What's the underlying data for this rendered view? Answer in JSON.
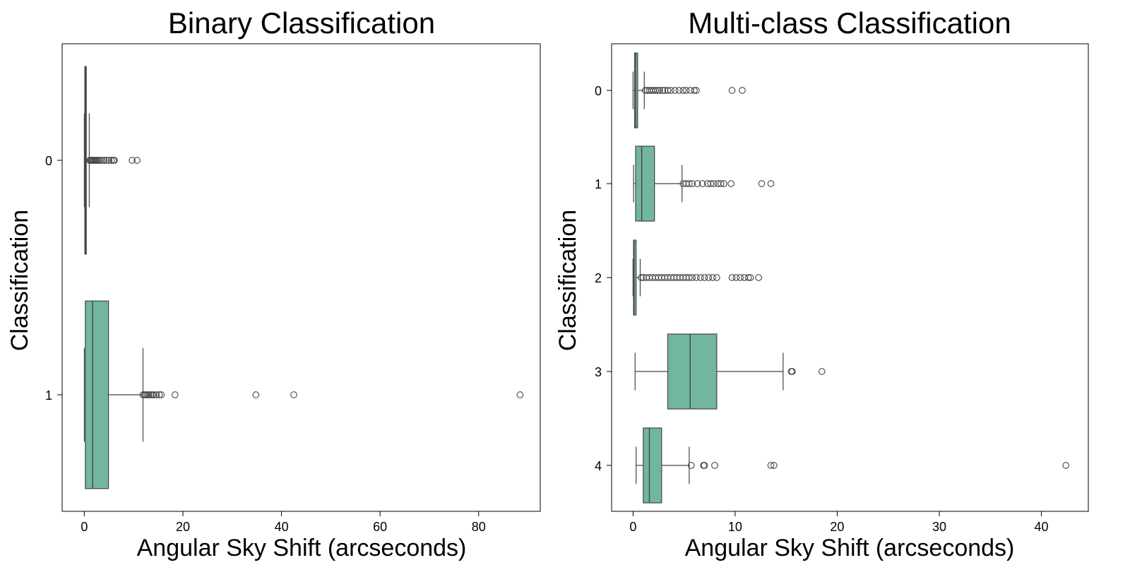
{
  "figure": {
    "background": "#ffffff"
  },
  "chart_data": [
    {
      "type": "boxplot",
      "orientation": "horizontal",
      "title": "Binary Classification",
      "xlabel": "Angular Sky Shift (arcseconds)",
      "ylabel": "Classification",
      "xlim": [
        -4.5,
        92.5
      ],
      "xticks": [
        0,
        20,
        40,
        60,
        80
      ],
      "categories": [
        "0",
        "1"
      ],
      "box_color": "#72b6a1",
      "edge_color": "#444444",
      "grid": false,
      "legend": "none",
      "boxes": [
        {
          "category": "0",
          "whisker_low": 0.0,
          "q1": 0.1,
          "median": 0.2,
          "q3": 0.4,
          "whisker_high": 1.0,
          "outliers": [
            1.1,
            1.3,
            1.5,
            1.7,
            1.9,
            2.1,
            2.3,
            2.6,
            2.9,
            3.2,
            3.6,
            4.0,
            4.5,
            5.0,
            5.5,
            5.9,
            6.1,
            9.7,
            10.7
          ]
        },
        {
          "category": "1",
          "whisker_low": 0.0,
          "q1": 0.2,
          "median": 1.7,
          "q3": 4.9,
          "whisker_high": 11.9,
          "outliers": [
            11.9,
            12.2,
            12.5,
            12.8,
            13.1,
            13.5,
            13.8,
            14.1,
            14.6,
            15.2,
            15.6,
            18.4,
            34.8,
            42.5,
            88.4
          ]
        }
      ]
    },
    {
      "type": "boxplot",
      "orientation": "horizontal",
      "title": "Multi-class Classification",
      "xlabel": "Angular Sky Shift (arcseconds)",
      "ylabel": "Classification",
      "xlim": [
        -2.1,
        44.6
      ],
      "xticks": [
        0,
        10,
        20,
        30,
        40
      ],
      "categories": [
        "0",
        "1",
        "2",
        "3",
        "4"
      ],
      "box_color": "#72b6a1",
      "edge_color": "#444444",
      "grid": false,
      "legend": "none",
      "boxes": [
        {
          "category": "0",
          "whisker_low": 0.0,
          "q1": 0.15,
          "median": 0.25,
          "q3": 0.45,
          "whisker_high": 1.1,
          "outliers": [
            1.2,
            1.4,
            1.6,
            1.8,
            2.0,
            2.2,
            2.4,
            2.6,
            2.9,
            3.1,
            3.4,
            3.7,
            4.1,
            4.5,
            4.9,
            5.2,
            5.6,
            6.0,
            6.2,
            9.7,
            10.7
          ]
        },
        {
          "category": "1",
          "whisker_low": 0.05,
          "q1": 0.25,
          "median": 0.85,
          "q3": 2.1,
          "whisker_high": 4.8,
          "outliers": [
            4.9,
            5.2,
            5.5,
            5.8,
            6.3,
            6.8,
            7.3,
            7.6,
            7.9,
            8.3,
            8.6,
            8.9,
            9.6,
            12.6,
            13.5
          ]
        },
        {
          "category": "2",
          "whisker_low": 0.0,
          "q1": 0.05,
          "median": 0.1,
          "q3": 0.3,
          "whisker_high": 0.7,
          "outliers": [
            0.8,
            1.0,
            1.3,
            1.6,
            1.9,
            2.2,
            2.5,
            2.8,
            3.1,
            3.4,
            3.7,
            4.0,
            4.3,
            4.6,
            4.9,
            5.2,
            5.5,
            5.8,
            6.2,
            6.6,
            7.0,
            7.4,
            7.8,
            8.2,
            9.7,
            10.1,
            10.5,
            10.9,
            11.3,
            11.5,
            12.3
          ]
        },
        {
          "category": "3",
          "whisker_low": 0.2,
          "q1": 3.4,
          "median": 5.6,
          "q3": 8.2,
          "whisker_high": 14.7,
          "outliers": [
            15.5,
            15.6,
            18.5
          ]
        },
        {
          "category": "4",
          "whisker_low": 0.3,
          "q1": 1.0,
          "median": 1.6,
          "q3": 2.8,
          "whisker_high": 5.5,
          "outliers": [
            5.7,
            6.9,
            7.0,
            8.0,
            13.5,
            13.8,
            42.4
          ]
        }
      ]
    }
  ]
}
